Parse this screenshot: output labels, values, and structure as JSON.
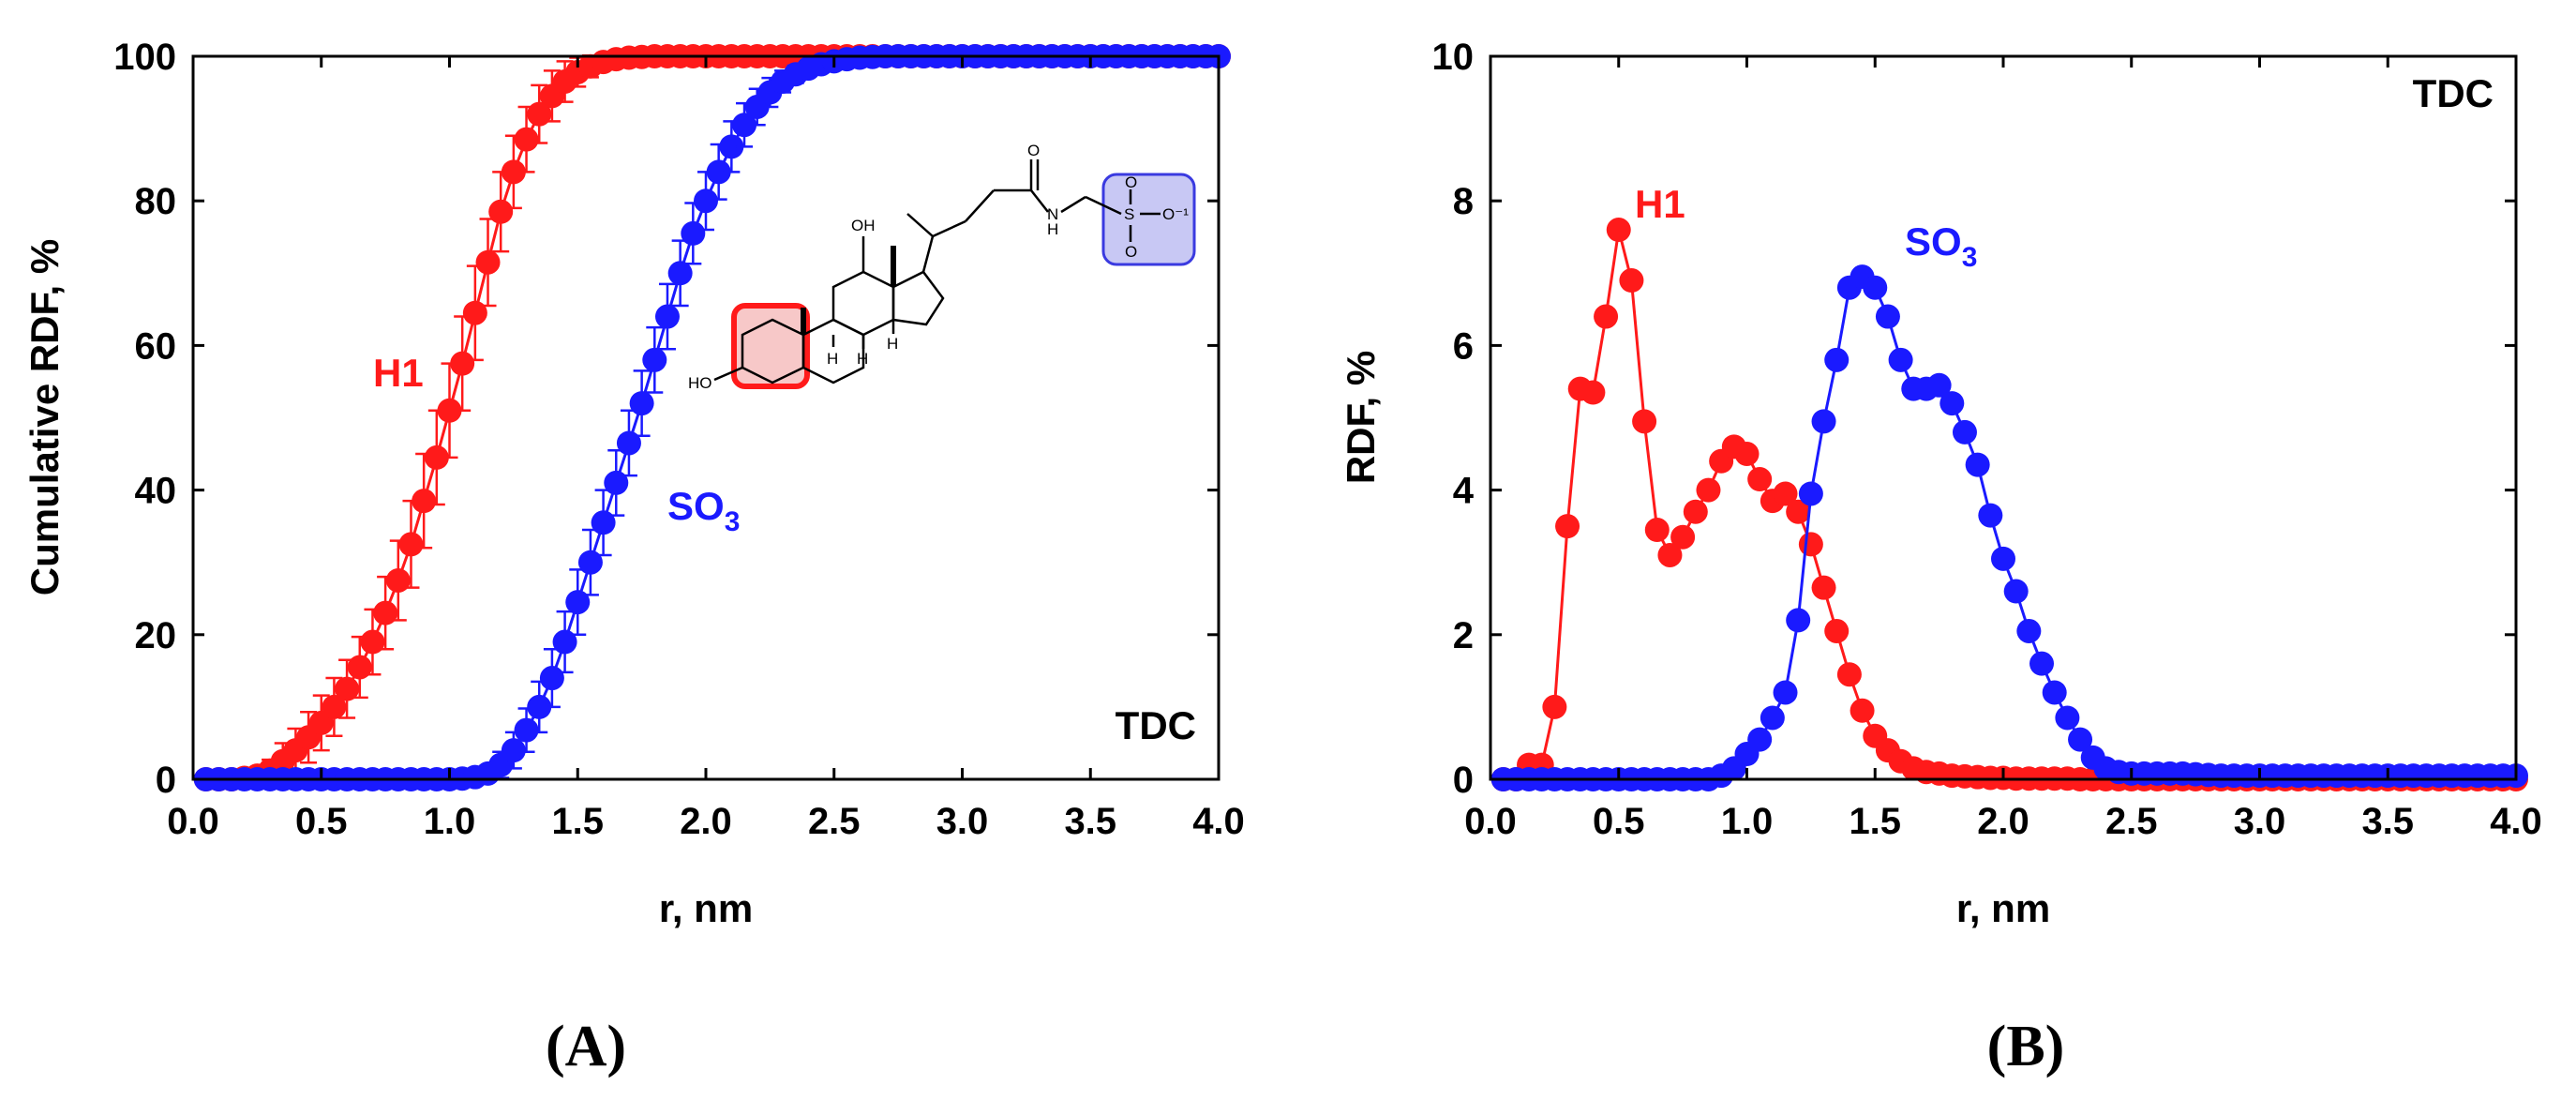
{
  "colors": {
    "red": "#ff1a1a",
    "blue": "#1a1aff",
    "axis": "#000000"
  },
  "chart_data": [
    {
      "type": "scatter",
      "panel_label": "(A)",
      "xlabel": "r, nm",
      "ylabel": "Cumulative RDF, %",
      "xlim": [
        0,
        4
      ],
      "ylim": [
        0,
        100
      ],
      "x_ticks": [
        "0.0",
        "0.5",
        "1.0",
        "1.5",
        "2.0",
        "2.5",
        "3.0",
        "3.5",
        "4.0"
      ],
      "y_ticks": [
        "0",
        "20",
        "40",
        "60",
        "80",
        "100"
      ],
      "corner_label": "TDC",
      "series_labels": {
        "h1": "H1",
        "so3_main": "SO",
        "so3_sub": "3"
      },
      "molecule_labels": {
        "oh": "OH",
        "h": "H",
        "ho": "HO",
        "o": "O",
        "s": "S",
        "o_minus": "O⁻¹",
        "nh_n": "N",
        "nh_h": "H"
      },
      "series": [
        {
          "name": "H1",
          "color": "#ff1a1a",
          "x": [
            0.05,
            0.1,
            0.15,
            0.2,
            0.25,
            0.3,
            0.35,
            0.4,
            0.45,
            0.5,
            0.55,
            0.6,
            0.65,
            0.7,
            0.75,
            0.8,
            0.85,
            0.9,
            0.95,
            1.0,
            1.05,
            1.1,
            1.15,
            1.2,
            1.25,
            1.3,
            1.35,
            1.4,
            1.45,
            1.5,
            1.55,
            1.6,
            1.65,
            1.7,
            1.75,
            1.8,
            1.85,
            1.9,
            1.95,
            2.0,
            2.05,
            2.1,
            2.15,
            2.2,
            2.25,
            2.3,
            2.35,
            2.4,
            2.45,
            2.5,
            2.55,
            2.6,
            2.65,
            2.7,
            2.75,
            2.8,
            2.85,
            2.9,
            2.95,
            3.0,
            3.05,
            3.1,
            3.15,
            3.2,
            3.25,
            3.3,
            3.35,
            3.4,
            3.45,
            3.5,
            3.55,
            3.6,
            3.65,
            3.7,
            3.75,
            3.8,
            3.85,
            3.9,
            3.95,
            4.0
          ],
          "y": [
            0.0,
            0.0,
            0.0,
            0.2,
            0.5,
            1.2,
            2.5,
            4.0,
            5.8,
            7.8,
            10.0,
            12.5,
            15.5,
            19.0,
            23.0,
            27.5,
            32.5,
            38.5,
            44.5,
            51.0,
            57.5,
            64.5,
            71.5,
            78.5,
            84.0,
            88.5,
            92.0,
            94.5,
            96.5,
            97.8,
            98.6,
            99.2,
            99.6,
            99.8,
            99.9,
            100,
            100,
            100,
            100,
            100,
            100,
            100,
            100,
            100,
            100,
            100,
            100,
            100,
            100,
            100,
            100,
            100,
            100,
            100,
            100,
            100,
            100,
            100,
            100,
            100,
            100,
            100,
            100,
            100,
            100,
            100,
            100,
            100,
            100,
            100,
            100,
            100,
            100,
            100,
            100,
            100,
            100,
            100,
            100,
            100
          ],
          "err": [
            0,
            0,
            0,
            0.3,
            0.8,
            1.5,
            2.5,
            3.0,
            3.5,
            3.8,
            4.0,
            4.0,
            4.2,
            4.5,
            5.0,
            5.5,
            6.0,
            6.5,
            6.5,
            6.5,
            6.5,
            6.5,
            6.0,
            5.5,
            5.0,
            4.5,
            4.0,
            3.5,
            2.8,
            2.0,
            1.5,
            1.0,
            0.6,
            0.4,
            0.2,
            0,
            0,
            0,
            0,
            0,
            0,
            0,
            0,
            0,
            0,
            0,
            0,
            0,
            0,
            0,
            0,
            0,
            0,
            0,
            0,
            0,
            0,
            0,
            0,
            0,
            0,
            0,
            0,
            0,
            0,
            0,
            0,
            0,
            0,
            0,
            0,
            0,
            0,
            0,
            0,
            0,
            0,
            0,
            0,
            0
          ]
        },
        {
          "name": "SO3",
          "color": "#1a1aff",
          "x": [
            0.05,
            0.1,
            0.15,
            0.2,
            0.25,
            0.3,
            0.35,
            0.4,
            0.45,
            0.5,
            0.55,
            0.6,
            0.65,
            0.7,
            0.75,
            0.8,
            0.85,
            0.9,
            0.95,
            1.0,
            1.05,
            1.1,
            1.15,
            1.2,
            1.25,
            1.3,
            1.35,
            1.4,
            1.45,
            1.5,
            1.55,
            1.6,
            1.65,
            1.7,
            1.75,
            1.8,
            1.85,
            1.9,
            1.95,
            2.0,
            2.05,
            2.1,
            2.15,
            2.2,
            2.25,
            2.3,
            2.35,
            2.4,
            2.45,
            2.5,
            2.55,
            2.6,
            2.65,
            2.7,
            2.75,
            2.8,
            2.85,
            2.9,
            2.95,
            3.0,
            3.05,
            3.1,
            3.15,
            3.2,
            3.25,
            3.3,
            3.35,
            3.4,
            3.45,
            3.5,
            3.55,
            3.6,
            3.65,
            3.7,
            3.75,
            3.8,
            3.85,
            3.9,
            3.95,
            4.0
          ],
          "y": [
            0,
            0,
            0,
            0,
            0,
            0,
            0,
            0,
            0,
            0,
            0,
            0,
            0,
            0,
            0,
            0,
            0,
            0,
            0,
            0,
            0.1,
            0.3,
            0.8,
            2.0,
            4.0,
            6.8,
            10.0,
            14.0,
            19.0,
            24.5,
            30.0,
            35.5,
            41.0,
            46.5,
            52.0,
            58.0,
            64.0,
            70.0,
            75.5,
            80.0,
            84.0,
            87.5,
            90.5,
            93.0,
            95.0,
            96.5,
            97.5,
            98.3,
            98.9,
            99.3,
            99.6,
            99.8,
            99.9,
            100,
            100,
            100,
            100,
            100,
            100,
            100,
            100,
            100,
            100,
            100,
            100,
            100,
            100,
            100,
            100,
            100,
            100,
            100,
            100,
            100,
            100,
            100,
            100,
            100,
            100,
            100
          ],
          "err": [
            0,
            0,
            0,
            0,
            0,
            0,
            0,
            0,
            0,
            0,
            0,
            0,
            0,
            0,
            0,
            0,
            0,
            0,
            0,
            0,
            0.2,
            0.5,
            1.0,
            1.8,
            2.5,
            3.0,
            3.5,
            4.0,
            4.2,
            4.5,
            4.5,
            4.5,
            4.5,
            4.5,
            4.5,
            4.5,
            4.5,
            4.5,
            4.2,
            4.0,
            3.8,
            3.5,
            3.0,
            2.5,
            2.0,
            1.5,
            1.2,
            0.8,
            0.5,
            0.3,
            0.2,
            0.1,
            0,
            0,
            0,
            0,
            0,
            0,
            0,
            0,
            0,
            0,
            0,
            0,
            0,
            0,
            0,
            0,
            0,
            0,
            0,
            0,
            0,
            0,
            0,
            0,
            0,
            0,
            0,
            0
          ]
        }
      ]
    },
    {
      "type": "line",
      "panel_label": "(B)",
      "xlabel": "r, nm",
      "ylabel": "RDF, %",
      "xlim": [
        0,
        4
      ],
      "ylim": [
        0,
        10
      ],
      "x_ticks": [
        "0.0",
        "0.5",
        "1.0",
        "1.5",
        "2.0",
        "2.5",
        "3.0",
        "3.5",
        "4.0"
      ],
      "y_ticks": [
        "0",
        "2",
        "4",
        "6",
        "8",
        "10"
      ],
      "corner_label": "TDC",
      "series_labels": {
        "h1": "H1",
        "so3_main": "SO",
        "so3_sub": "3"
      },
      "series": [
        {
          "name": "H1",
          "color": "#ff1a1a",
          "x": [
            0.05,
            0.1,
            0.15,
            0.2,
            0.25,
            0.3,
            0.35,
            0.4,
            0.45,
            0.5,
            0.55,
            0.6,
            0.65,
            0.7,
            0.75,
            0.8,
            0.85,
            0.9,
            0.95,
            1.0,
            1.05,
            1.1,
            1.15,
            1.2,
            1.25,
            1.3,
            1.35,
            1.4,
            1.45,
            1.5,
            1.55,
            1.6,
            1.65,
            1.7,
            1.75,
            1.8,
            1.85,
            1.9,
            1.95,
            2.0,
            2.05,
            2.1,
            2.15,
            2.2,
            2.25,
            2.3,
            2.35,
            2.4,
            2.45,
            2.5,
            2.55,
            2.6,
            2.65,
            2.7,
            2.75,
            2.8,
            2.85,
            2.9,
            2.95,
            3.0,
            3.05,
            3.1,
            3.15,
            3.2,
            3.25,
            3.3,
            3.35,
            3.4,
            3.45,
            3.5,
            3.55,
            3.6,
            3.65,
            3.7,
            3.75,
            3.8,
            3.85,
            3.9,
            3.95,
            4.0
          ],
          "y": [
            0,
            0,
            0.2,
            0.2,
            1.0,
            3.5,
            5.4,
            5.35,
            6.4,
            7.6,
            6.9,
            4.95,
            3.45,
            3.1,
            3.35,
            3.7,
            4.0,
            4.4,
            4.6,
            4.5,
            4.15,
            3.85,
            3.95,
            3.7,
            3.25,
            2.65,
            2.05,
            1.45,
            0.95,
            0.6,
            0.4,
            0.25,
            0.15,
            0.1,
            0.08,
            0.05,
            0.04,
            0.03,
            0.02,
            0.02,
            0.01,
            0.01,
            0.01,
            0.01,
            0.01,
            0,
            0,
            0,
            0,
            0,
            0,
            0,
            0,
            0,
            0,
            0,
            0,
            0,
            0,
            0,
            0,
            0,
            0,
            0,
            0,
            0,
            0,
            0,
            0,
            0,
            0,
            0,
            0,
            0,
            0,
            0,
            0,
            0,
            0,
            0
          ]
        },
        {
          "name": "SO3",
          "color": "#1a1aff",
          "x": [
            0.05,
            0.1,
            0.15,
            0.2,
            0.25,
            0.3,
            0.35,
            0.4,
            0.45,
            0.5,
            0.55,
            0.6,
            0.65,
            0.7,
            0.75,
            0.8,
            0.85,
            0.9,
            0.95,
            1.0,
            1.05,
            1.1,
            1.15,
            1.2,
            1.25,
            1.3,
            1.35,
            1.4,
            1.45,
            1.5,
            1.55,
            1.6,
            1.65,
            1.7,
            1.75,
            1.8,
            1.85,
            1.9,
            1.95,
            2.0,
            2.05,
            2.1,
            2.15,
            2.2,
            2.25,
            2.3,
            2.35,
            2.4,
            2.45,
            2.5,
            2.55,
            2.6,
            2.65,
            2.7,
            2.75,
            2.8,
            2.85,
            2.9,
            2.95,
            3.0,
            3.05,
            3.1,
            3.15,
            3.2,
            3.25,
            3.3,
            3.35,
            3.4,
            3.45,
            3.5,
            3.55,
            3.6,
            3.65,
            3.7,
            3.75,
            3.8,
            3.85,
            3.9,
            3.95,
            4.0
          ],
          "y": [
            0,
            0,
            0,
            0,
            0,
            0,
            0,
            0,
            0,
            0,
            0,
            0,
            0,
            0,
            0,
            0,
            0,
            0.05,
            0.15,
            0.35,
            0.55,
            0.85,
            1.2,
            2.2,
            3.95,
            4.95,
            5.8,
            6.8,
            6.95,
            6.8,
            6.4,
            5.8,
            5.4,
            5.4,
            5.45,
            5.2,
            4.8,
            4.35,
            3.65,
            3.05,
            2.6,
            2.05,
            1.6,
            1.2,
            0.85,
            0.55,
            0.3,
            0.15,
            0.1,
            0.08,
            0.08,
            0.08,
            0.08,
            0.08,
            0.07,
            0.06,
            0.05,
            0.05,
            0.05,
            0.05,
            0.05,
            0.05,
            0.05,
            0.05,
            0.05,
            0.05,
            0.05,
            0.05,
            0.05,
            0.05,
            0.05,
            0.05,
            0.05,
            0.05,
            0.05,
            0.05,
            0.05,
            0.05,
            0.05,
            0.05
          ]
        }
      ]
    }
  ]
}
